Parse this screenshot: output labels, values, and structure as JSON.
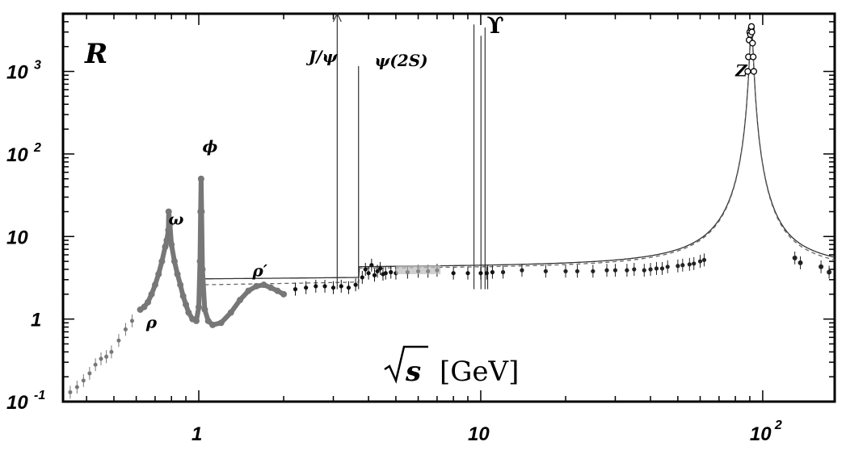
{
  "chart_data": {
    "type": "scatter",
    "ylabel": "R",
    "xlabel": {
      "variable": "s",
      "unit": "[GeV]"
    },
    "x_scale": "log",
    "y_scale": "log",
    "xlim": [
      0.33,
      180
    ],
    "ylim": [
      0.1,
      5000
    ],
    "x_ticks": [
      {
        "value": 1,
        "base": "1",
        "exp": ""
      },
      {
        "value": 10,
        "base": "10",
        "exp": ""
      },
      {
        "value": 100,
        "base": "10",
        "exp": "2"
      }
    ],
    "y_ticks": [
      {
        "value": 0.1,
        "base": "10",
        "exp": "-1"
      },
      {
        "value": 1,
        "base": "1",
        "exp": ""
      },
      {
        "value": 10,
        "base": "10",
        "exp": ""
      },
      {
        "value": 100,
        "base": "10",
        "exp": "2"
      },
      {
        "value": 1000,
        "base": "10",
        "exp": "3"
      }
    ],
    "annotations": [
      {
        "id": "rho",
        "label": "ρ",
        "x": 0.65,
        "y": 0.78
      },
      {
        "id": "omega",
        "label": "ω",
        "x": 0.78,
        "y": 14
      },
      {
        "id": "phi",
        "label": "ϕ",
        "x": 1.03,
        "y": 105
      },
      {
        "id": "rho-prime",
        "label": "ρ′",
        "x": 1.55,
        "y": 3.3
      },
      {
        "id": "jpsi",
        "label": "J/ψ",
        "x": 2.45,
        "y": 1300
      },
      {
        "id": "psi2s",
        "label": "ψ(2S)",
        "x": 4.2,
        "y": 1160
      },
      {
        "id": "upsilon",
        "label": "ϒ",
        "x": 10.5,
        "y": 2900
      },
      {
        "id": "z",
        "label": "Z",
        "x": 80,
        "y": 870
      }
    ],
    "series": [
      {
        "id": "low-energy-points",
        "points": [
          [
            0.35,
            0.13
          ],
          [
            0.37,
            0.15
          ],
          [
            0.39,
            0.18
          ],
          [
            0.41,
            0.22
          ],
          [
            0.43,
            0.28
          ],
          [
            0.45,
            0.33
          ],
          [
            0.47,
            0.35
          ],
          [
            0.49,
            0.4
          ],
          [
            0.52,
            0.55
          ],
          [
            0.55,
            0.75
          ],
          [
            0.58,
            0.95
          ]
        ]
      },
      {
        "id": "rho-omega-phi-data",
        "points": [
          [
            0.62,
            1.3
          ],
          [
            0.64,
            1.4
          ],
          [
            0.66,
            1.6
          ],
          [
            0.68,
            2.0
          ],
          [
            0.7,
            2.6
          ],
          [
            0.72,
            3.5
          ],
          [
            0.74,
            5.0
          ],
          [
            0.76,
            7.5
          ],
          [
            0.77,
            9.0
          ],
          [
            0.78,
            12
          ],
          [
            0.782,
            20
          ],
          [
            0.79,
            14
          ],
          [
            0.8,
            8
          ],
          [
            0.82,
            5
          ],
          [
            0.84,
            3.5
          ],
          [
            0.86,
            2.6
          ],
          [
            0.88,
            1.9
          ],
          [
            0.9,
            1.5
          ],
          [
            0.92,
            1.2
          ],
          [
            0.95,
            1.0
          ],
          [
            0.98,
            0.95
          ],
          [
            1.0,
            1.4
          ],
          [
            1.01,
            5
          ],
          [
            1.015,
            20
          ],
          [
            1.019,
            50
          ],
          [
            1.023,
            20
          ],
          [
            1.03,
            4
          ],
          [
            1.05,
            1.3
          ],
          [
            1.08,
            0.95
          ],
          [
            1.12,
            0.85
          ],
          [
            1.2,
            0.9
          ],
          [
            1.3,
            1.2
          ],
          [
            1.4,
            1.7
          ],
          [
            1.5,
            2.2
          ],
          [
            1.6,
            2.5
          ],
          [
            1.7,
            2.6
          ],
          [
            1.8,
            2.4
          ],
          [
            1.9,
            2.2
          ],
          [
            2.0,
            2.0
          ]
        ]
      },
      {
        "id": "charm-region-data",
        "points": [
          [
            2.2,
            2.3
          ],
          [
            2.4,
            2.4
          ],
          [
            2.6,
            2.5
          ],
          [
            2.8,
            2.5
          ],
          [
            3.0,
            2.4
          ],
          [
            3.2,
            2.5
          ],
          [
            3.4,
            2.4
          ],
          [
            3.6,
            2.6
          ],
          [
            3.8,
            3.2
          ],
          [
            3.9,
            4.0
          ],
          [
            4.0,
            3.6
          ],
          [
            4.1,
            4.5
          ],
          [
            4.2,
            3.4
          ],
          [
            4.3,
            3.8
          ],
          [
            4.4,
            4.1
          ],
          [
            4.5,
            3.5
          ],
          [
            4.6,
            3.6
          ],
          [
            4.8,
            3.7
          ],
          [
            5.0,
            3.6
          ],
          [
            5.5,
            3.7
          ],
          [
            6.0,
            3.8
          ],
          [
            6.5,
            3.8
          ],
          [
            7.0,
            3.9
          ],
          [
            8.0,
            3.6
          ],
          [
            9.0,
            3.6
          ],
          [
            10.0,
            3.6
          ],
          [
            10.5,
            3.6
          ],
          [
            11.0,
            3.7
          ]
        ]
      },
      {
        "id": "continuum-data",
        "points": [
          [
            12,
            3.7
          ],
          [
            14,
            3.9
          ],
          [
            17,
            3.8
          ],
          [
            20,
            3.8
          ],
          [
            22,
            3.8
          ],
          [
            25,
            3.8
          ],
          [
            28,
            3.9
          ],
          [
            30,
            3.9
          ],
          [
            33,
            3.9
          ],
          [
            35,
            4.0
          ],
          [
            38,
            3.9
          ],
          [
            40,
            4.0
          ],
          [
            42,
            4.1
          ],
          [
            44,
            4.1
          ],
          [
            46,
            4.3
          ],
          [
            50,
            4.4
          ],
          [
            52,
            4.5
          ],
          [
            55,
            4.6
          ],
          [
            57,
            4.7
          ],
          [
            60,
            5.0
          ],
          [
            62,
            5.2
          ]
        ]
      },
      {
        "id": "z-peak-data",
        "points": [
          [
            88.5,
            1000
          ],
          [
            89.0,
            1500
          ],
          [
            89.5,
            2400
          ],
          [
            90.0,
            3000
          ],
          [
            90.5,
            2800
          ],
          [
            91.0,
            3300
          ],
          [
            91.2,
            3500
          ],
          [
            91.5,
            3000
          ],
          [
            92.0,
            2200
          ],
          [
            92.5,
            1500
          ],
          [
            93.0,
            1000
          ]
        ]
      },
      {
        "id": "high-energy-data",
        "points": [
          [
            130,
            5.5
          ],
          [
            136,
            4.8
          ],
          [
            161,
            4.3
          ],
          [
            172,
            3.7
          ]
        ]
      }
    ],
    "curves": [
      {
        "id": "model-solid"
      },
      {
        "id": "model-dashed"
      }
    ]
  }
}
